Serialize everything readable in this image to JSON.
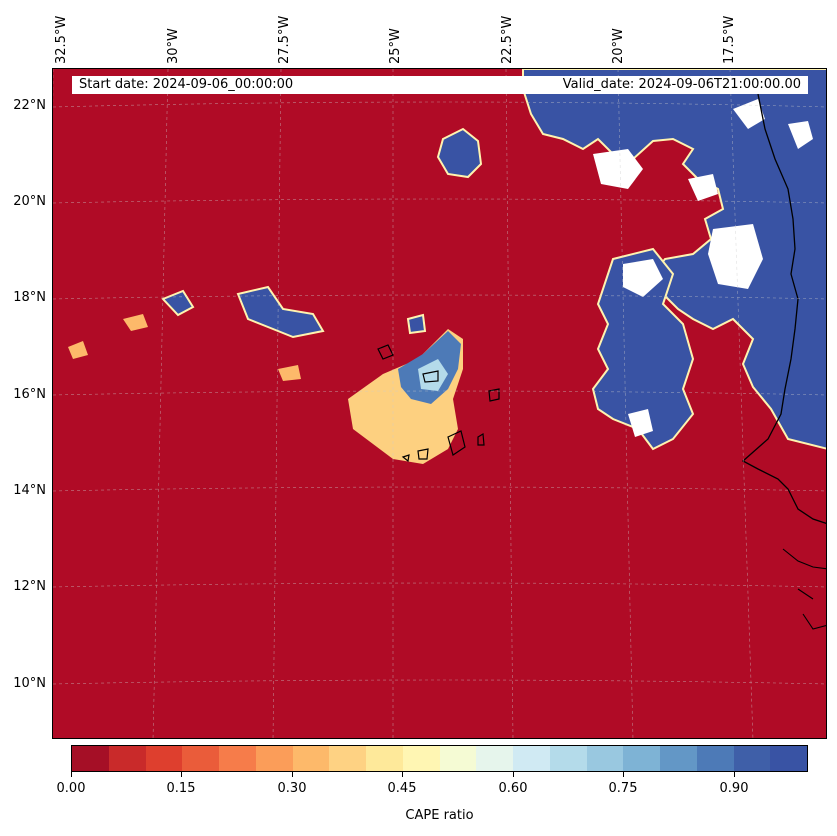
{
  "header": {
    "start_date": "Start date: 2024-09-06_00:00:00",
    "valid_date": "Valid_date: 2024-09-06T21:00:00.00"
  },
  "map": {
    "longitude_labels": [
      "32.5°W",
      "30°W",
      "27.5°W",
      "25°W",
      "22.5°W",
      "20°W",
      "17.5°W"
    ],
    "latitude_labels": [
      "22°N",
      "20°N",
      "18°N",
      "16°N",
      "14°N",
      "12°N",
      "10°N"
    ],
    "extent": {
      "lon_min": -32.5,
      "lon_max": -16.3,
      "lat_min": 8.9,
      "lat_max": 22.8
    },
    "gridlines": true,
    "background_color": "#b00b26",
    "high_ratio_color": "#3953a4",
    "masked_color": "#ffffff",
    "coastline_color": "#000000"
  },
  "colorbar": {
    "title": "CAPE ratio",
    "tick_labels": [
      "0.00",
      "0.15",
      "0.30",
      "0.45",
      "0.60",
      "0.75",
      "0.90"
    ],
    "range": [
      0,
      1
    ],
    "colors": [
      "#a50f26",
      "#c92a2a",
      "#de3f2e",
      "#ea5c3a",
      "#f67c4a",
      "#fb9d59",
      "#fdb96a",
      "#fed283",
      "#fee99a",
      "#fff6b3",
      "#f5fbd4",
      "#e6f5ec",
      "#d0eaf3",
      "#b4dbea",
      "#99c8e0",
      "#7eb3d5",
      "#6397c6",
      "#4d7ab7",
      "#3f5fa8",
      "#3953a4"
    ]
  }
}
